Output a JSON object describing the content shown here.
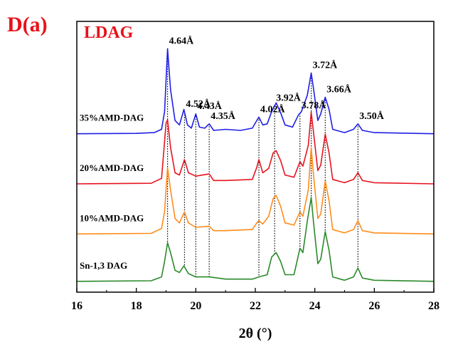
{
  "panel_label": "D(a)",
  "chart_data": {
    "type": "line",
    "subtitle": "LDAG",
    "xlabel": "2θ (°)",
    "ylabel": "",
    "xlim": [
      16,
      28
    ],
    "x_ticks": [
      "16",
      "18",
      "20",
      "22",
      "24",
      "26",
      "28"
    ],
    "y_axis_shown": false,
    "grid": false,
    "series": [
      {
        "name": "35%AMD-DAG",
        "color": "#1f1fe6",
        "baseline_frac": 0.415,
        "points": [
          [
            16.0,
            0
          ],
          [
            18.0,
            0.3
          ],
          [
            18.6,
            1
          ],
          [
            18.85,
            4
          ],
          [
            18.95,
            20
          ],
          [
            19.05,
            77
          ],
          [
            19.15,
            40
          ],
          [
            19.3,
            12
          ],
          [
            19.45,
            8
          ],
          [
            19.6,
            22
          ],
          [
            19.72,
            8
          ],
          [
            19.85,
            5
          ],
          [
            20.0,
            18
          ],
          [
            20.12,
            6
          ],
          [
            20.3,
            5
          ],
          [
            20.45,
            9
          ],
          [
            20.6,
            3
          ],
          [
            21.0,
            4
          ],
          [
            21.5,
            3
          ],
          [
            21.9,
            5
          ],
          [
            22.05,
            12
          ],
          [
            22.12,
            15
          ],
          [
            22.25,
            8
          ],
          [
            22.4,
            9
          ],
          [
            22.55,
            20
          ],
          [
            22.7,
            28
          ],
          [
            22.85,
            19
          ],
          [
            23.0,
            8
          ],
          [
            23.25,
            6
          ],
          [
            23.45,
            17
          ],
          [
            23.55,
            20
          ],
          [
            23.75,
            35
          ],
          [
            23.88,
            55
          ],
          [
            23.95,
            42
          ],
          [
            24.1,
            12
          ],
          [
            24.2,
            18
          ],
          [
            24.35,
            33
          ],
          [
            24.48,
            22
          ],
          [
            24.6,
            4
          ],
          [
            25.0,
            1
          ],
          [
            25.3,
            4
          ],
          [
            25.45,
            9
          ],
          [
            25.6,
            3
          ],
          [
            26.0,
            1
          ],
          [
            28.0,
            0
          ]
        ]
      },
      {
        "name": "20%AMD-DAG",
        "color": "#e6141f",
        "baseline_frac": 0.6,
        "points": [
          [
            16.0,
            0
          ],
          [
            18.5,
            0.5
          ],
          [
            18.85,
            5
          ],
          [
            19.0,
            55
          ],
          [
            19.05,
            58
          ],
          [
            19.15,
            33
          ],
          [
            19.3,
            10
          ],
          [
            19.45,
            8
          ],
          [
            19.62,
            22
          ],
          [
            19.75,
            10
          ],
          [
            20.0,
            7
          ],
          [
            20.45,
            9
          ],
          [
            20.6,
            3
          ],
          [
            21.0,
            3
          ],
          [
            21.9,
            4
          ],
          [
            22.05,
            15
          ],
          [
            22.12,
            22
          ],
          [
            22.25,
            10
          ],
          [
            22.45,
            14
          ],
          [
            22.6,
            28
          ],
          [
            22.7,
            30
          ],
          [
            22.85,
            21
          ],
          [
            23.0,
            8
          ],
          [
            23.3,
            6
          ],
          [
            23.5,
            20
          ],
          [
            23.6,
            16
          ],
          [
            23.78,
            35
          ],
          [
            23.88,
            65
          ],
          [
            23.95,
            48
          ],
          [
            24.1,
            12
          ],
          [
            24.2,
            17
          ],
          [
            24.35,
            45
          ],
          [
            24.48,
            28
          ],
          [
            24.6,
            4
          ],
          [
            25.0,
            1
          ],
          [
            25.3,
            4
          ],
          [
            25.45,
            10
          ],
          [
            25.6,
            3
          ],
          [
            26.0,
            1
          ],
          [
            28.0,
            0
          ]
        ]
      },
      {
        "name": "10%AMD-DAG",
        "color": "#ff8c1a",
        "baseline_frac": 0.785,
        "points": [
          [
            16.0,
            0
          ],
          [
            18.5,
            0.5
          ],
          [
            18.85,
            5
          ],
          [
            18.95,
            20
          ],
          [
            19.05,
            60
          ],
          [
            19.15,
            40
          ],
          [
            19.3,
            14
          ],
          [
            19.45,
            10
          ],
          [
            19.62,
            20
          ],
          [
            19.75,
            10
          ],
          [
            20.0,
            6
          ],
          [
            20.45,
            7
          ],
          [
            20.6,
            3
          ],
          [
            21.0,
            3
          ],
          [
            21.9,
            4
          ],
          [
            22.05,
            10
          ],
          [
            22.12,
            12
          ],
          [
            22.25,
            9
          ],
          [
            22.45,
            16
          ],
          [
            22.6,
            32
          ],
          [
            22.7,
            35
          ],
          [
            22.85,
            25
          ],
          [
            23.0,
            10
          ],
          [
            23.3,
            8
          ],
          [
            23.5,
            20
          ],
          [
            23.6,
            16
          ],
          [
            23.78,
            40
          ],
          [
            23.88,
            78
          ],
          [
            23.95,
            55
          ],
          [
            24.1,
            14
          ],
          [
            24.2,
            18
          ],
          [
            24.35,
            48
          ],
          [
            24.48,
            30
          ],
          [
            24.6,
            4
          ],
          [
            25.0,
            1
          ],
          [
            25.3,
            4
          ],
          [
            25.45,
            12
          ],
          [
            25.6,
            3
          ],
          [
            26.0,
            1
          ],
          [
            28.0,
            0
          ]
        ]
      },
      {
        "name": "Sn-1,3 DAG",
        "color": "#2a8a2a",
        "baseline_frac": 0.96,
        "points": [
          [
            16.0,
            0
          ],
          [
            18.5,
            0.5
          ],
          [
            18.85,
            4
          ],
          [
            18.95,
            18
          ],
          [
            19.05,
            35
          ],
          [
            19.15,
            26
          ],
          [
            19.3,
            10
          ],
          [
            19.45,
            8
          ],
          [
            19.6,
            14
          ],
          [
            19.75,
            7
          ],
          [
            20.0,
            4
          ],
          [
            20.45,
            4
          ],
          [
            21.0,
            2
          ],
          [
            21.9,
            2
          ],
          [
            22.12,
            4
          ],
          [
            22.4,
            6
          ],
          [
            22.55,
            22
          ],
          [
            22.7,
            26
          ],
          [
            22.85,
            18
          ],
          [
            23.0,
            6
          ],
          [
            23.3,
            6
          ],
          [
            23.5,
            30
          ],
          [
            23.6,
            26
          ],
          [
            23.75,
            55
          ],
          [
            23.88,
            76
          ],
          [
            23.95,
            55
          ],
          [
            24.1,
            16
          ],
          [
            24.2,
            20
          ],
          [
            24.35,
            45
          ],
          [
            24.48,
            28
          ],
          [
            24.6,
            4
          ],
          [
            25.0,
            1
          ],
          [
            25.3,
            4
          ],
          [
            25.45,
            12
          ],
          [
            25.6,
            3
          ],
          [
            26.0,
            1
          ],
          [
            28.0,
            0
          ]
        ]
      }
    ],
    "peak_annotations": [
      {
        "label": "4.64Å",
        "x": 19.05
      },
      {
        "label": "4.52Å",
        "x": 19.62
      },
      {
        "label": "4.43Å",
        "x": 20.0
      },
      {
        "label": "4.35Å",
        "x": 20.45
      },
      {
        "label": "4.02Å",
        "x": 22.12
      },
      {
        "label": "3.92Å",
        "x": 22.65
      },
      {
        "label": "3.78Å",
        "x": 23.5
      },
      {
        "label": "3.72Å",
        "x": 23.88
      },
      {
        "label": "3.66Å",
        "x": 24.35
      },
      {
        "label": "3.50Å",
        "x": 25.45
      }
    ],
    "reference_lines_x": [
      19.05,
      19.62,
      20.0,
      20.45,
      22.12,
      22.65,
      23.5,
      23.88,
      24.35,
      25.45
    ]
  }
}
